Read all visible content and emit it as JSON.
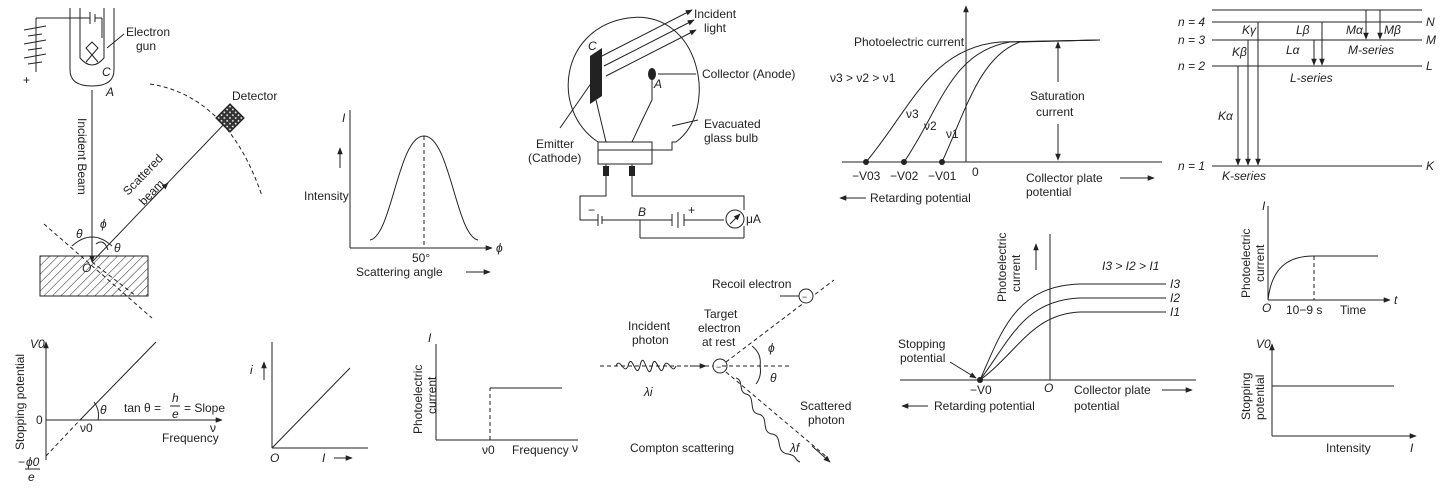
{
  "colors": {
    "ink": "#222222",
    "background": "#ffffff"
  },
  "electron_diffraction": {
    "electron_gun": "Electron gun",
    "gun_C": "C",
    "gun_A": "A",
    "plus": "+",
    "detector": "Detector",
    "incident_beam": "Incident Beam",
    "scattered_beam_1": "Scattered",
    "scattered_beam_2": "beam",
    "theta": "θ",
    "phi": "ϕ",
    "origin": "O"
  },
  "intensity_plot": {
    "y_symbol": "I",
    "ylabel": "Intensity",
    "peak": "50°",
    "xlabel": "Scattering angle",
    "x_symbol": "ϕ"
  },
  "photocell": {
    "incident_light_1": "Incident",
    "incident_light_2": "light",
    "C": "C",
    "A": "A",
    "collector": "Collector (Anode)",
    "emitter_1": "Emitter",
    "emitter_2": "(Cathode)",
    "bulb_1": "Evacuated",
    "bulb_2": "glass bulb",
    "B": "B",
    "meter": "μA",
    "minus": "−",
    "plus": "+"
  },
  "freq_curves": {
    "ylabel": "Photoelectric current",
    "relation": "ν3 > ν2 > ν1",
    "curves": [
      "ν3",
      "ν2",
      "ν1"
    ],
    "ticks": [
      "−V03",
      "−V02",
      "−V01",
      "0"
    ],
    "saturation_1": "Saturation",
    "saturation_2": "current",
    "collector_1": "Collector plate",
    "collector_2": "potential",
    "retarding": "Retarding potential"
  },
  "xray_levels": {
    "levels": [
      "n = 4",
      "n = 3",
      "n = 2",
      "n = 1"
    ],
    "shells": [
      "N",
      "M",
      "L",
      "K"
    ],
    "lines": [
      "Kγ",
      "Kβ",
      "Kα",
      "Lβ",
      "Lα",
      "Mα",
      "Mβ"
    ],
    "series": [
      "M-series",
      "L-series",
      "K-series"
    ]
  },
  "stopping_vs_freq": {
    "y_top": "V0",
    "ylabel": "Stopping potential",
    "zero": "0",
    "nu0": "ν0",
    "x_end": "ν",
    "xlabel": "Frequency",
    "theta": "θ",
    "eq_lhs": "tan θ =",
    "eq_h": "h",
    "eq_e": "e",
    "eq_rhs": "= Slope",
    "intercept_num": "ϕ0",
    "intercept_den": "e",
    "minus": "−"
  },
  "i_vs_I": {
    "y_symbol": "i",
    "origin": "O",
    "x_symbol": "I"
  },
  "current_vs_freq": {
    "y_symbol": "I",
    "ylabel_1": "Photoelectric",
    "ylabel_2": "current",
    "nu0": "ν0",
    "xlabel": "Frequency",
    "x_end": "ν"
  },
  "compton": {
    "recoil": "Recoil electron",
    "target_1": "Target",
    "target_2": "electron",
    "target_3": "at rest",
    "incident_1": "Incident",
    "incident_2": "photon",
    "lambda_i": "λi",
    "phi": "ϕ",
    "theta": "θ",
    "scattered_1": "Scattered",
    "scattered_2": "photon",
    "lambda_f": "λf",
    "caption": "Compton scattering",
    "electron": "−"
  },
  "intensity_curves": {
    "ylabel_1": "Photoelectric",
    "ylabel_2": "current",
    "relation": "I3 > I2 > I1",
    "curves": [
      "I3",
      "I2",
      "I1"
    ],
    "stopping_1": "Stopping",
    "stopping_2": "potential",
    "v0": "−V0",
    "origin": "O",
    "collector_1": "Collector plate",
    "collector_2": "potential",
    "retarding": "Retarding potential"
  },
  "current_vs_time": {
    "y_symbol": "I",
    "ylabel_1": "Photoelectric",
    "ylabel_2": "current",
    "origin": "O",
    "tick": "10−9 s",
    "xlabel": "Time",
    "x_symbol": "t"
  },
  "stopping_vs_intensity": {
    "y_top": "V0",
    "ylabel_1": "Stopping",
    "ylabel_2": "potential",
    "xlabel": "Intensity",
    "x_symbol": "I"
  }
}
